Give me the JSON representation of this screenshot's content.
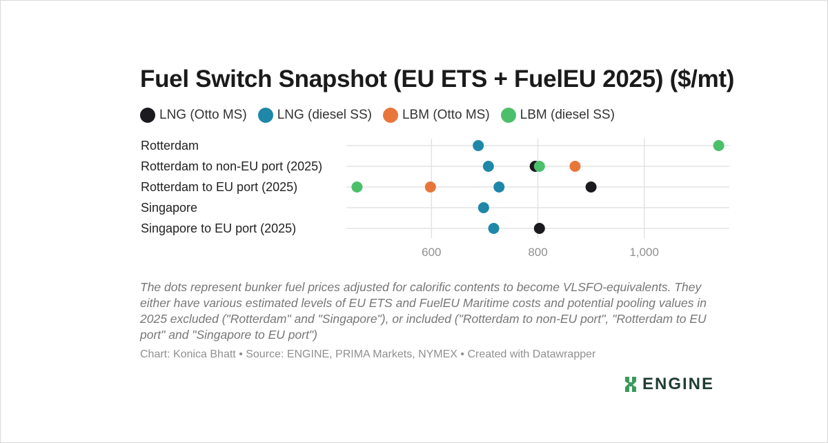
{
  "title": "Fuel Switch Snapshot (EU ETS + FuelEU 2025) ($/mt)",
  "legend": [
    {
      "label": "LNG (Otto MS)",
      "color": "#1a1a1f"
    },
    {
      "label": "LNG (diesel SS)",
      "color": "#1f87a8"
    },
    {
      "label": "LBM (Otto MS)",
      "color": "#e8763a"
    },
    {
      "label": "LBM (diesel SS)",
      "color": "#4cbf6a"
    }
  ],
  "chart_data": {
    "type": "scatter",
    "categories": [
      "Rotterdam",
      "Rotterdam to non-EU port (2025)",
      "Rotterdam to EU port (2025)",
      "Singapore",
      "Singapore to EU port (2025)"
    ],
    "series": [
      {
        "name": "LNG (Otto MS)",
        "color": "#1a1a1f",
        "values": [
          null,
          795,
          900,
          null,
          803
        ]
      },
      {
        "name": "LNG (diesel SS)",
        "color": "#1f87a8",
        "values": [
          688,
          707,
          727,
          698,
          717
        ]
      },
      {
        "name": "LBM (Otto MS)",
        "color": "#e8763a",
        "values": [
          null,
          870,
          598,
          null,
          null
        ]
      },
      {
        "name": "LBM (diesel SS)",
        "color": "#4cbf6a",
        "values": [
          1140,
          803,
          460,
          null,
          null
        ]
      }
    ],
    "xticks": [
      600,
      800,
      1000
    ],
    "xtick_labels": [
      "600",
      "800",
      "1,000"
    ],
    "xlim": [
      440,
      1160
    ],
    "xlabel": "",
    "ylabel": "",
    "grid": true
  },
  "note": "The dots represent bunker fuel prices adjusted for calorific contents to become VLSFO-equivalents. They either have various estimated levels of EU ETS and FuelEU Maritime costs and potential pooling values in 2025 excluded (\"Rotterdam\" and \"Singapore\"), or included (\"Rotterdam to non-EU port\", \"Rotterdam to EU port\" and \"Singapore to EU port\")",
  "credit": "Chart: Konica Bhatt • Source: ENGINE, PRIMA Markets, NYMEX • Created with Datawrapper",
  "logo": {
    "text": "ENGINE",
    "color": "#1f3d33"
  }
}
